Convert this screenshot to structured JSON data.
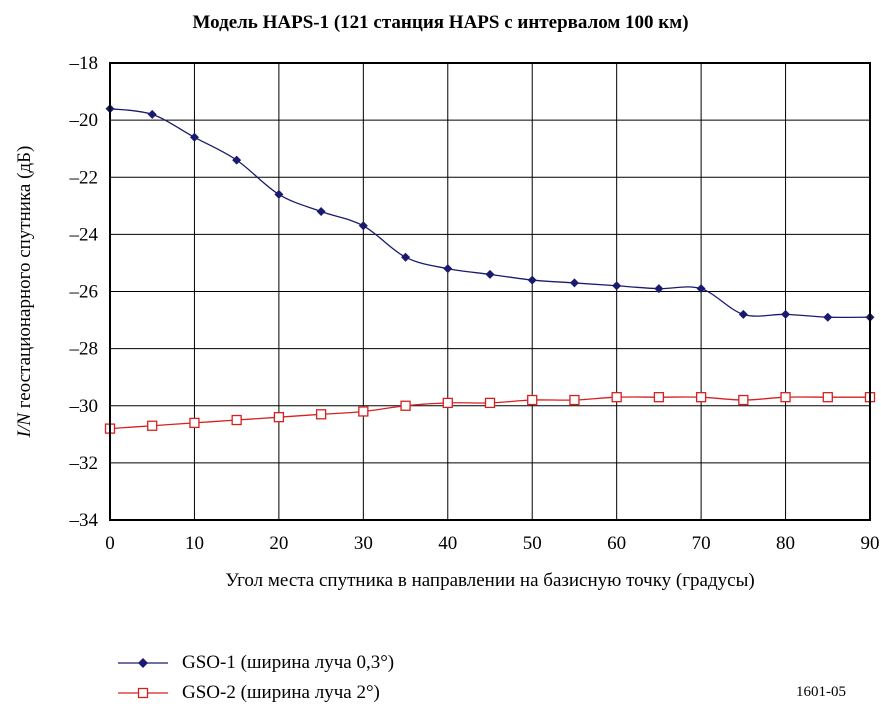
{
  "chart_data": {
    "type": "line",
    "title": "Модель HAPS-1 (121 станция HAPS с интервалом 100 км)",
    "xlabel": "Угол места спутника в направлении на базисную точку (градусы)",
    "ylabel_italic": "I/N",
    "ylabel_rest": " геостационарного спутника (дБ)",
    "xlim": [
      0,
      90
    ],
    "ylim": [
      -34,
      -18
    ],
    "xticks": [
      0,
      10,
      20,
      30,
      40,
      50,
      60,
      70,
      80,
      90
    ],
    "yticks": [
      -18,
      -20,
      -22,
      -24,
      -26,
      -28,
      -30,
      -32,
      -34
    ],
    "ytick_labels": [
      "–18",
      "–20",
      "–22",
      "–24",
      "–26",
      "–28",
      "–30",
      "–32",
      "–34"
    ],
    "grid": true,
    "legend_position": "bottom-left",
    "x": [
      0,
      5,
      10,
      15,
      20,
      25,
      30,
      35,
      40,
      45,
      50,
      55,
      60,
      65,
      70,
      75,
      80,
      85,
      90
    ],
    "series": [
      {
        "name": "GSO-1 (ширина луча 0,3°)",
        "color": "#1a1a6e",
        "marker": "diamond",
        "values": [
          -19.6,
          -19.8,
          -20.6,
          -21.4,
          -22.6,
          -23.2,
          -23.7,
          -24.8,
          -25.2,
          -25.4,
          -25.6,
          -25.7,
          -25.8,
          -25.9,
          -25.9,
          -26.8,
          -26.8,
          -26.9,
          -26.9
        ]
      },
      {
        "name": "GSO-2 (ширина луча 2°)",
        "color": "#d62020",
        "marker": "square",
        "values": [
          -30.8,
          -30.7,
          -30.6,
          -30.5,
          -30.4,
          -30.3,
          -30.2,
          -30.0,
          -29.9,
          -29.9,
          -29.8,
          -29.8,
          -29.7,
          -29.7,
          -29.7,
          -29.8,
          -29.7,
          -29.7,
          -29.7
        ]
      }
    ]
  },
  "figure_code": "1601-05"
}
